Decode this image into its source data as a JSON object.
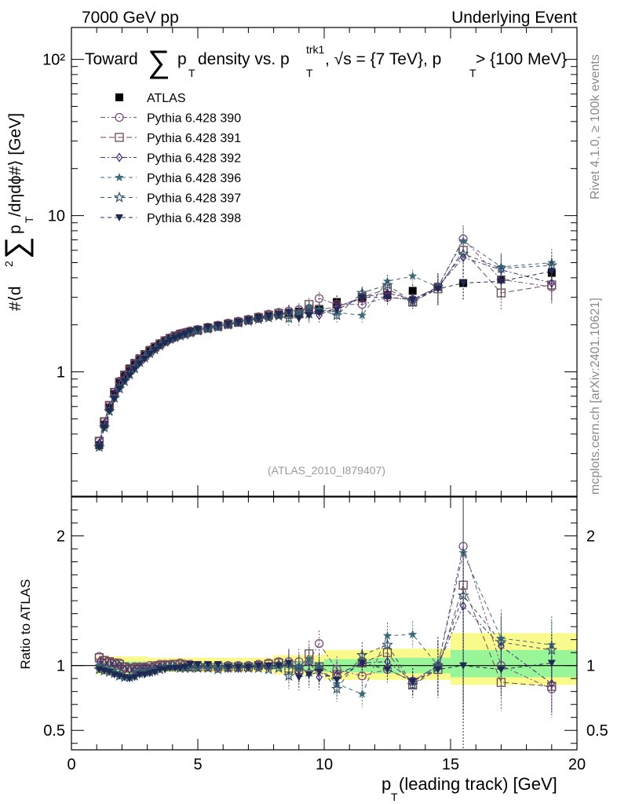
{
  "header": {
    "left": "7000 GeV pp",
    "right": "Underlying Event"
  },
  "title": {
    "prefix": "Toward",
    "sum_symbol": "∑",
    "p": "p",
    "sub_t": "T",
    "mid": " density vs. p",
    "sup_trk1": "trk1",
    "tail": ", √s = {7 TeV}, p",
    "tail2": " > {100 MeV}"
  },
  "side_labels": {
    "rivet": "Rivet 4.1.0, ≥ 100k events",
    "mcplots": "mcplots.cern.ch [arXiv:2401.10621]"
  },
  "analysis_tag": "(ATLAS_2010_I879407)",
  "ylabel_main": {
    "a": "#⟨d",
    "sup2": "2",
    "sum": "∑",
    "p": " p",
    "subT": "T",
    "b": " /dηdϕ#⟩ [GeV]"
  },
  "ylabel_ratio": "Ratio to ATLAS",
  "xlabel": {
    "p": "p",
    "sub": "T",
    "rest": " (leading track) [GeV]"
  },
  "colors": {
    "atlas": "#000000",
    "s390": "#7b4a7e",
    "s391": "#6e4752",
    "s392": "#4b2a7a",
    "s396": "#3f6a78",
    "s397": "#34566a",
    "s398": "#1f2a52",
    "band_inner": "#98f598",
    "band_outer": "#fafa8c"
  },
  "chart_data": [
    {
      "panel": "main",
      "type": "scatter",
      "yscale": "log",
      "xlim": [
        0,
        20
      ],
      "ylim": [
        0.16,
        160
      ],
      "x_ticks": [
        "0",
        "5",
        "10",
        "15",
        "20"
      ],
      "y_tick_labels": [
        {
          "value": 1,
          "label": "1"
        },
        {
          "value": 10,
          "label": "10"
        },
        {
          "value": 100,
          "label": "10²"
        }
      ],
      "x": [
        1.1,
        1.3,
        1.5,
        1.7,
        1.9,
        2.1,
        2.3,
        2.5,
        2.7,
        2.9,
        3.1,
        3.3,
        3.5,
        3.7,
        3.9,
        4.1,
        4.3,
        4.5,
        4.7,
        5.0,
        5.4,
        5.8,
        6.2,
        6.6,
        7.0,
        7.4,
        7.8,
        8.2,
        8.6,
        9.0,
        9.4,
        9.8,
        10.5,
        11.5,
        12.5,
        13.5,
        14.5,
        15.5,
        17.0,
        19.0
      ],
      "series": [
        {
          "name": "ATLAS",
          "marker": "square-filled",
          "values": [
            0.34,
            0.46,
            0.59,
            0.72,
            0.85,
            0.96,
            1.05,
            1.14,
            1.22,
            1.3,
            1.38,
            1.45,
            1.51,
            1.57,
            1.63,
            1.68,
            1.73,
            1.77,
            1.81,
            1.86,
            1.92,
            1.98,
            2.04,
            2.1,
            2.16,
            2.22,
            2.28,
            2.33,
            2.38,
            2.43,
            2.48,
            2.53,
            2.8,
            2.95,
            3.1,
            3.3,
            3.5,
            3.7,
            3.9,
            4.3
          ]
        },
        {
          "name": "Pythia 6.428 390",
          "marker": "circle-open",
          "values": [
            0.36,
            0.48,
            0.61,
            0.74,
            0.87,
            0.95,
            1.03,
            1.13,
            1.21,
            1.29,
            1.38,
            1.45,
            1.52,
            1.59,
            1.65,
            1.7,
            1.76,
            1.79,
            1.83,
            1.87,
            1.93,
            1.99,
            2.05,
            2.11,
            2.17,
            2.25,
            2.34,
            2.4,
            2.45,
            2.5,
            2.55,
            2.95,
            2.7,
            2.7,
            3.0,
            2.9,
            3.5,
            7.1,
            3.9,
            3.5
          ]
        },
        {
          "name": "Pythia 6.428 391",
          "marker": "square-open",
          "values": [
            0.36,
            0.48,
            0.61,
            0.74,
            0.86,
            0.95,
            1.03,
            1.12,
            1.2,
            1.28,
            1.36,
            1.44,
            1.51,
            1.58,
            1.64,
            1.7,
            1.74,
            1.77,
            1.8,
            1.85,
            1.91,
            1.96,
            2.02,
            2.08,
            2.15,
            2.23,
            2.31,
            2.37,
            2.34,
            2.35,
            2.7,
            2.5,
            2.6,
            3.0,
            3.4,
            2.8,
            3.4,
            6.0,
            3.2,
            3.6
          ]
        },
        {
          "name": "Pythia 6.428 392",
          "marker": "diamond-open",
          "values": [
            0.35,
            0.47,
            0.6,
            0.73,
            0.85,
            0.93,
            1.02,
            1.1,
            1.19,
            1.27,
            1.34,
            1.42,
            1.49,
            1.56,
            1.61,
            1.66,
            1.72,
            1.76,
            1.79,
            1.85,
            1.9,
            1.95,
            2.01,
            2.07,
            2.14,
            2.2,
            2.26,
            2.35,
            2.4,
            2.35,
            2.55,
            2.3,
            2.6,
            3.0,
            3.2,
            2.9,
            3.5,
            5.4,
            4.5,
            3.7
          ]
        },
        {
          "name": "Pythia 6.428 396",
          "marker": "star-filled",
          "values": [
            0.34,
            0.45,
            0.57,
            0.69,
            0.8,
            0.88,
            0.97,
            1.07,
            1.17,
            1.25,
            1.33,
            1.41,
            1.48,
            1.55,
            1.61,
            1.66,
            1.72,
            1.76,
            1.8,
            1.85,
            1.91,
            1.97,
            2.03,
            2.1,
            2.16,
            2.22,
            2.28,
            2.33,
            2.4,
            2.38,
            2.6,
            2.5,
            2.4,
            2.3,
            3.8,
            4.1,
            3.5,
            6.9,
            4.7,
            5.0
          ]
        },
        {
          "name": "Pythia 6.428 397",
          "marker": "star-open",
          "values": [
            0.33,
            0.44,
            0.56,
            0.68,
            0.78,
            0.87,
            0.96,
            1.05,
            1.15,
            1.23,
            1.31,
            1.39,
            1.47,
            1.55,
            1.62,
            1.66,
            1.7,
            1.73,
            1.78,
            1.83,
            1.88,
            1.93,
            2.0,
            2.06,
            2.11,
            2.17,
            2.22,
            2.28,
            2.2,
            2.4,
            2.35,
            2.5,
            2.3,
            3.2,
            3.6,
            2.8,
            3.5,
            5.7,
            4.6,
            4.8
          ]
        },
        {
          "name": "Pythia 6.428 398",
          "marker": "triangle-down-filled",
          "values": [
            0.33,
            0.44,
            0.56,
            0.67,
            0.78,
            0.87,
            0.95,
            1.04,
            1.13,
            1.21,
            1.3,
            1.38,
            1.46,
            1.53,
            1.6,
            1.65,
            1.7,
            1.75,
            1.82,
            1.87,
            1.94,
            1.99,
            2.02,
            2.08,
            2.14,
            2.21,
            2.27,
            2.33,
            2.42,
            2.2,
            2.3,
            2.4,
            2.5,
            3.0,
            3.0,
            2.9,
            3.4,
            3.7,
            3.8,
            4.4
          ]
        }
      ]
    },
    {
      "panel": "ratio",
      "type": "scatter",
      "xlim": [
        0,
        20
      ],
      "ylim": [
        0.35,
        2.3
      ],
      "y_ticks": [
        {
          "value": 0.5,
          "label": "0.5"
        },
        {
          "value": 1,
          "label": "1"
        },
        {
          "value": 2,
          "label": "2"
        }
      ],
      "x": [
        1.1,
        1.3,
        1.5,
        1.7,
        1.9,
        2.1,
        2.3,
        2.5,
        2.7,
        2.9,
        3.1,
        3.3,
        3.5,
        3.7,
        3.9,
        4.1,
        4.3,
        4.5,
        4.7,
        5.0,
        5.4,
        5.8,
        6.2,
        6.6,
        7.0,
        7.4,
        7.8,
        8.2,
        8.6,
        9.0,
        9.4,
        9.8,
        10.5,
        11.5,
        12.5,
        13.5,
        14.5,
        15.5,
        17.0,
        19.0
      ],
      "series": [
        {
          "name": "Pythia 6.428 390",
          "values": [
            1.07,
            1.04,
            1.03,
            1.02,
            1.02,
            0.99,
            0.98,
            0.99,
            0.99,
            0.99,
            1.0,
            1.0,
            1.01,
            1.01,
            1.01,
            1.01,
            1.02,
            1.01,
            1.01,
            1.0,
            1.0,
            1.0,
            1.0,
            1.0,
            1.0,
            1.01,
            1.02,
            1.03,
            1.03,
            1.03,
            1.03,
            1.17,
            0.97,
            0.92,
            0.97,
            0.88,
            1.0,
            1.92,
            1.0,
            0.82
          ]
        },
        {
          "name": "Pythia 6.428 391",
          "values": [
            1.06,
            1.04,
            1.03,
            1.02,
            1.01,
            0.99,
            0.98,
            0.98,
            0.98,
            0.98,
            0.98,
            0.99,
            1.0,
            1.0,
            1.0,
            1.01,
            1.01,
            1.0,
            0.99,
            0.99,
            0.99,
            0.99,
            0.99,
            0.99,
            0.99,
            1.0,
            1.01,
            1.02,
            0.98,
            0.97,
            1.09,
            0.99,
            0.93,
            1.02,
            1.1,
            0.85,
            0.97,
            1.62,
            0.87,
            0.84
          ]
        },
        {
          "name": "Pythia 6.428 392",
          "values": [
            1.03,
            1.02,
            1.02,
            1.01,
            1.0,
            0.97,
            0.97,
            0.96,
            0.97,
            0.98,
            0.97,
            0.98,
            0.99,
            0.99,
            0.99,
            0.99,
            0.99,
            0.99,
            0.99,
            0.99,
            0.99,
            0.98,
            0.98,
            0.98,
            0.99,
            0.99,
            0.99,
            1.01,
            1.01,
            0.97,
            1.03,
            0.91,
            0.93,
            1.02,
            1.03,
            0.88,
            1.0,
            1.46,
            1.15,
            0.86
          ]
        },
        {
          "name": "Pythia 6.428 396",
          "values": [
            1.0,
            0.98,
            0.97,
            0.96,
            0.94,
            0.92,
            0.92,
            0.94,
            0.96,
            0.96,
            0.96,
            0.97,
            0.98,
            0.99,
            0.99,
            0.99,
            0.99,
            0.99,
            0.99,
            0.99,
            0.99,
            0.99,
            0.99,
            1.0,
            1.0,
            1.0,
            1.0,
            1.0,
            1.01,
            0.98,
            1.05,
            0.99,
            0.86,
            0.78,
            1.23,
            1.24,
            1.0,
            1.87,
            1.21,
            1.16
          ]
        },
        {
          "name": "Pythia 6.428 397",
          "values": [
            0.97,
            0.96,
            0.95,
            0.94,
            0.92,
            0.91,
            0.91,
            0.92,
            0.94,
            0.95,
            0.95,
            0.96,
            0.97,
            0.99,
            0.99,
            0.99,
            0.98,
            0.98,
            0.98,
            0.98,
            0.98,
            0.97,
            0.98,
            0.98,
            0.98,
            0.98,
            0.97,
            0.98,
            0.92,
            0.99,
            0.95,
            0.99,
            0.82,
            1.08,
            1.16,
            0.85,
            1.0,
            1.54,
            1.18,
            1.12
          ]
        },
        {
          "name": "Pythia 6.428 398",
          "values": [
            0.97,
            0.96,
            0.95,
            0.93,
            0.92,
            0.91,
            0.9,
            0.91,
            0.93,
            0.93,
            0.94,
            0.95,
            0.97,
            0.97,
            0.98,
            0.98,
            0.98,
            0.99,
            1.01,
            1.01,
            1.01,
            1.01,
            0.99,
            0.99,
            0.99,
            1.0,
            1.0,
            1.0,
            1.02,
            0.91,
            0.93,
            0.95,
            0.89,
            1.02,
            0.97,
            0.88,
            0.97,
            1.0,
            0.97,
            1.02
          ]
        }
      ],
      "bands": [
        {
          "x0": 1.0,
          "x1": 3.0,
          "inner": [
            0.97,
            1.03
          ],
          "outer": [
            0.93,
            1.07
          ]
        },
        {
          "x0": 3.0,
          "x1": 5.0,
          "inner": [
            0.98,
            1.02
          ],
          "outer": [
            0.95,
            1.06
          ]
        },
        {
          "x0": 5.0,
          "x1": 8.0,
          "inner": [
            0.98,
            1.02
          ],
          "outer": [
            0.95,
            1.06
          ]
        },
        {
          "x0": 8.0,
          "x1": 10.0,
          "inner": [
            0.97,
            1.03
          ],
          "outer": [
            0.93,
            1.08
          ]
        },
        {
          "x0": 10.0,
          "x1": 12.0,
          "inner": [
            0.95,
            1.05
          ],
          "outer": [
            0.89,
            1.12
          ]
        },
        {
          "x0": 12.0,
          "x1": 15.0,
          "inner": [
            0.94,
            1.06
          ],
          "outer": [
            0.89,
            1.13
          ]
        },
        {
          "x0": 15.0,
          "x1": 20.0,
          "inner": [
            0.91,
            1.12
          ],
          "outer": [
            0.85,
            1.25
          ]
        }
      ]
    }
  ]
}
